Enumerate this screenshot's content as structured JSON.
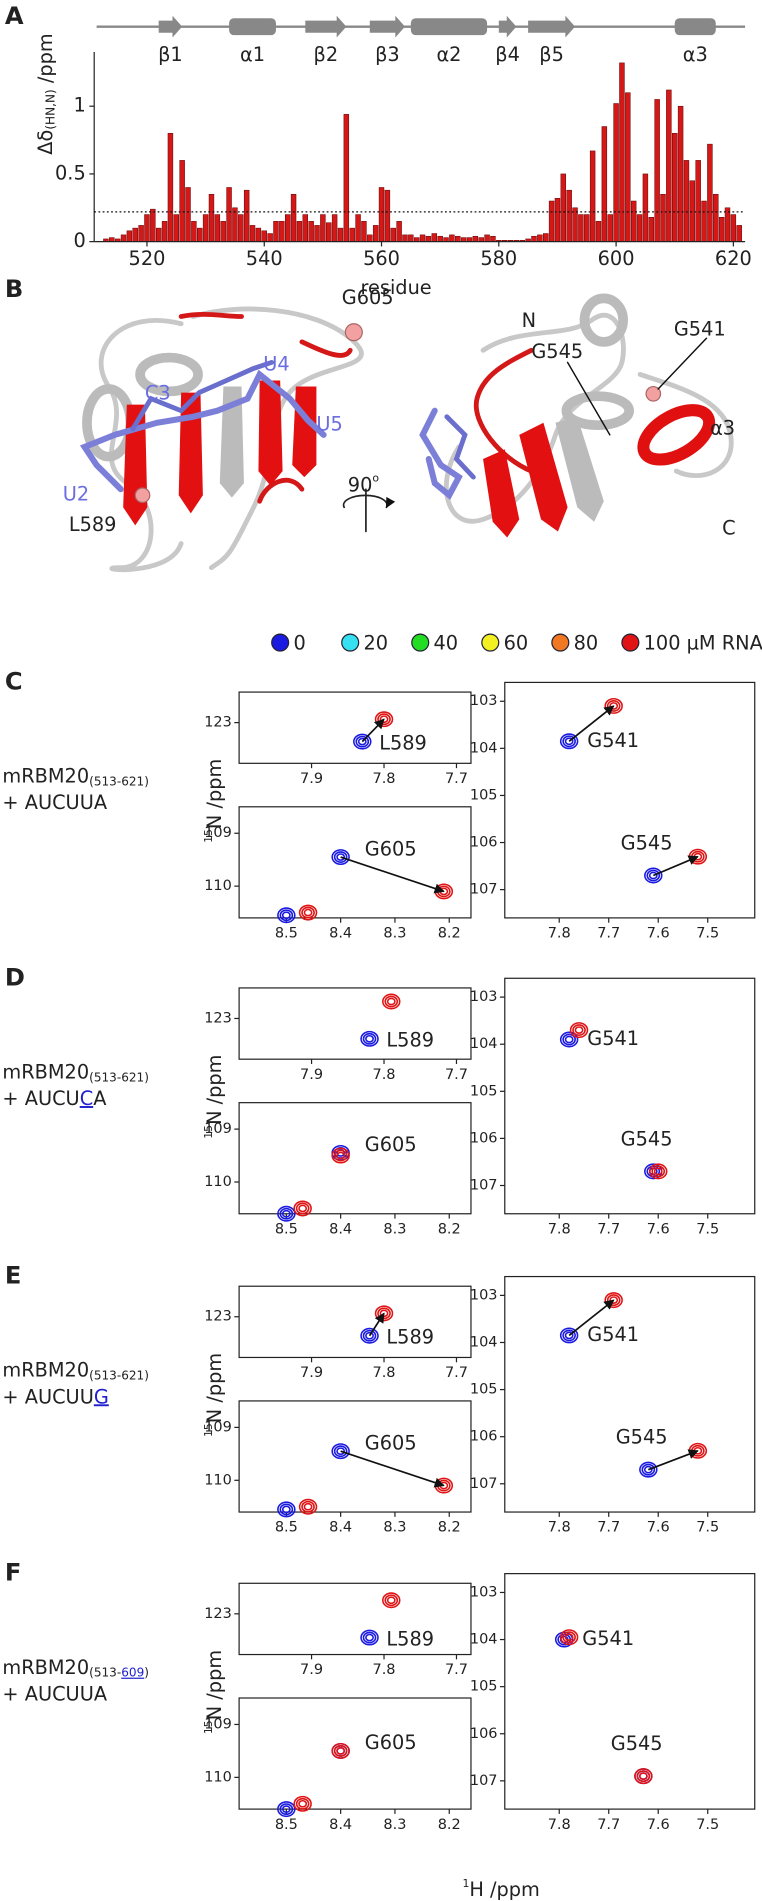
{
  "panel_labels": [
    "A",
    "B",
    "C",
    "D",
    "E",
    "F"
  ],
  "chart_data": {
    "type": "bar",
    "x": [
      513,
      514,
      515,
      516,
      517,
      518,
      519,
      520,
      521,
      522,
      523,
      524,
      525,
      526,
      527,
      528,
      529,
      530,
      531,
      532,
      533,
      534,
      535,
      536,
      537,
      538,
      539,
      540,
      541,
      542,
      543,
      544,
      545,
      546,
      547,
      548,
      549,
      550,
      551,
      552,
      553,
      554,
      555,
      556,
      557,
      558,
      559,
      560,
      561,
      562,
      563,
      564,
      565,
      566,
      567,
      568,
      569,
      570,
      571,
      572,
      573,
      574,
      575,
      576,
      577,
      578,
      579,
      580,
      581,
      582,
      583,
      584,
      585,
      586,
      587,
      588,
      589,
      590,
      591,
      592,
      593,
      594,
      595,
      596,
      597,
      598,
      599,
      600,
      601,
      602,
      603,
      604,
      605,
      606,
      607,
      608,
      609,
      610,
      611,
      612,
      613,
      614,
      615,
      616,
      617,
      618,
      619,
      620,
      621
    ],
    "values": [
      0.02,
      0.03,
      0.02,
      0.05,
      0.08,
      0.1,
      0.12,
      0.2,
      0.24,
      0.1,
      0.15,
      0.8,
      0.2,
      0.6,
      0.4,
      0.15,
      0.1,
      0.2,
      0.35,
      0.2,
      0.15,
      0.4,
      0.25,
      0.2,
      0.38,
      0.12,
      0.1,
      0.08,
      0.06,
      0.15,
      0.15,
      0.2,
      0.35,
      0.15,
      0.2,
      0.15,
      0.12,
      0.2,
      0.14,
      0.2,
      0.1,
      0.94,
      0.1,
      0.2,
      0.15,
      0.05,
      0.12,
      0.4,
      0.38,
      0.1,
      0.15,
      0.05,
      0.05,
      0.03,
      0.05,
      0.04,
      0.06,
      0.04,
      0.03,
      0.05,
      0.04,
      0.03,
      0.03,
      0.04,
      0.03,
      0.05,
      0.04,
      0.01,
      0.01,
      0.01,
      0.01,
      0.01,
      0.02,
      0.04,
      0.05,
      0.06,
      0.3,
      0.32,
      0.5,
      0.38,
      0.25,
      0.2,
      0.2,
      0.67,
      0.15,
      0.85,
      0.2,
      1.02,
      1.32,
      1.1,
      0.3,
      0.2,
      0.5,
      0.18,
      1.05,
      0.35,
      1.12,
      0.8,
      1.0,
      0.6,
      0.45,
      0.6,
      0.3,
      0.72,
      0.35,
      0.18,
      0.25,
      0.2,
      0.12
    ],
    "color": "#d41818",
    "xlim": [
      511,
      622
    ],
    "xticks": [
      520,
      540,
      560,
      580,
      600,
      620
    ],
    "ylim": [
      0,
      1.4
    ],
    "yticks": [
      0,
      0.5,
      1
    ],
    "threshold": 0.22,
    "xlabel": "residue",
    "ylabel": {
      "text": "Δδ",
      "sub": "(HN,N)",
      "unit": " /ppm"
    },
    "secondary_structure": [
      {
        "label": "β1",
        "type": "strand",
        "start": 522,
        "end": 526
      },
      {
        "label": "α1",
        "type": "helix",
        "start": 534,
        "end": 542
      },
      {
        "label": "β2",
        "type": "strand",
        "start": 547,
        "end": 554
      },
      {
        "label": "β3",
        "type": "strand",
        "start": 558,
        "end": 564
      },
      {
        "label": "α2",
        "type": "helix",
        "start": 565,
        "end": 578
      },
      {
        "label": "β4",
        "type": "strand",
        "start": 580,
        "end": 583
      },
      {
        "label": "β5",
        "type": "strand",
        "start": 585,
        "end": 593
      },
      {
        "label": "α3",
        "type": "helix",
        "start": 610,
        "end": 617
      }
    ]
  },
  "structure": {
    "left_labels": [
      "G605",
      "U4",
      "C3",
      "U5",
      "U2",
      "L589"
    ],
    "right_labels": [
      "N",
      "G545",
      "G541",
      "α3",
      "C"
    ],
    "rotation": {
      "text": "90",
      "sup": "o"
    }
  },
  "titration": {
    "legend": [
      {
        "label": "0",
        "color": "#1a1ae0"
      },
      {
        "label": "20",
        "color": "#35e0f0"
      },
      {
        "label": "40",
        "color": "#22dd22"
      },
      {
        "label": "60",
        "color": "#f2f020"
      },
      {
        "label": "80",
        "color": "#f07822"
      },
      {
        "label": "100 µM RNA",
        "color": "#e01414"
      }
    ],
    "y_label": {
      "sup": "15",
      "text": "N /ppm"
    },
    "x_label": {
      "sup": "1",
      "text": "H /ppm"
    },
    "panels": [
      {
        "sample": {
          "protein": "mRBM20",
          "range": [
            {
              "text": "(513-621)"
            }
          ],
          "rna": [
            {
              "text": "+ AUCUUA"
            }
          ]
        },
        "plots": [
          {
            "xlim": [
              8.0,
              7.68
            ],
            "xticks": [
              7.9,
              7.8,
              7.7
            ],
            "ylim": [
              123.6,
              122.55
            ],
            "yticks": [
              123
            ],
            "peaks": [
              {
                "label": "L589",
                "start": {
                  "x": 7.83,
                  "y": 123.28
                },
                "end": {
                  "x": 7.8,
                  "y": 122.95
                },
                "arrow": true
              }
            ]
          },
          {
            "xlim": [
              8.587,
              8.16
            ],
            "xticks": [
              8.5,
              8.4,
              8.3,
              8.2
            ],
            "ylim": [
              110.6,
              108.5
            ],
            "yticks": [
              109,
              110
            ],
            "peaks": [
              {
                "label": "G605",
                "start": {
                  "x": 8.4,
                  "y": 109.45
                },
                "end": {
                  "x": 8.21,
                  "y": 110.1
                },
                "arrow": true
              },
              {
                "label": null,
                "start": {
                  "x": 8.5,
                  "y": 110.55
                },
                "end": {
                  "x": 8.46,
                  "y": 110.5
                },
                "arrow": false
              }
            ]
          },
          {
            "xlim": [
              7.91,
              7.405
            ],
            "xticks": [
              7.8,
              7.7,
              7.6,
              7.5
            ],
            "ylim": [
              107.6,
              102.6
            ],
            "yticks": [
              103,
              104,
              105,
              106,
              107
            ],
            "peaks": [
              {
                "label": "G541",
                "start": {
                  "x": 7.78,
                  "y": 103.85
                },
                "end": {
                  "x": 7.69,
                  "y": 103.1
                },
                "arrow": true
              },
              {
                "label": "G545",
                "start": {
                  "x": 7.61,
                  "y": 106.7
                },
                "end": {
                  "x": 7.52,
                  "y": 106.3
                },
                "arrow": true
              }
            ]
          }
        ]
      },
      {
        "sample": {
          "protein": "mRBM20",
          "range": [
            {
              "text": "(513-621)"
            }
          ],
          "rna": [
            {
              "text": "+ AUCU"
            },
            {
              "text": "C",
              "mutated": true
            },
            {
              "text": "A"
            }
          ]
        },
        "plots": [
          {
            "xlim": [
              8.0,
              7.68
            ],
            "xticks": [
              7.9,
              7.8,
              7.7
            ],
            "ylim": [
              123.6,
              122.55
            ],
            "yticks": [
              123
            ],
            "peaks": [
              {
                "label": "L589",
                "start": {
                  "x": 7.82,
                  "y": 123.3
                },
                "end": {
                  "x": 7.79,
                  "y": 122.75
                },
                "arrow": false
              }
            ]
          },
          {
            "xlim": [
              8.587,
              8.16
            ],
            "xticks": [
              8.5,
              8.4,
              8.3,
              8.2
            ],
            "ylim": [
              110.6,
              108.5
            ],
            "yticks": [
              109,
              110
            ],
            "peaks": [
              {
                "label": "G605",
                "start": {
                  "x": 8.4,
                  "y": 109.45
                },
                "end": {
                  "x": 8.4,
                  "y": 109.5
                },
                "arrow": false
              },
              {
                "label": null,
                "start": {
                  "x": 8.5,
                  "y": 110.6
                },
                "end": {
                  "x": 8.47,
                  "y": 110.5
                },
                "arrow": false
              }
            ]
          },
          {
            "xlim": [
              7.91,
              7.405
            ],
            "xticks": [
              7.8,
              7.7,
              7.6,
              7.5
            ],
            "ylim": [
              107.6,
              102.6
            ],
            "yticks": [
              103,
              104,
              105,
              106,
              107
            ],
            "peaks": [
              {
                "label": "G541",
                "start": {
                  "x": 7.78,
                  "y": 103.9
                },
                "end": {
                  "x": 7.76,
                  "y": 103.7
                },
                "arrow": false
              },
              {
                "label": "G545",
                "start": {
                  "x": 7.61,
                  "y": 106.7
                },
                "end": {
                  "x": 7.6,
                  "y": 106.7
                },
                "arrow": false
              }
            ]
          }
        ]
      },
      {
        "sample": {
          "protein": "mRBM20",
          "range": [
            {
              "text": "(513-621)"
            }
          ],
          "rna": [
            {
              "text": "+ AUCUU"
            },
            {
              "text": "G",
              "mutated": true
            }
          ]
        },
        "plots": [
          {
            "xlim": [
              8.0,
              7.68
            ],
            "xticks": [
              7.9,
              7.8,
              7.7
            ],
            "ylim": [
              123.6,
              122.55
            ],
            "yticks": [
              123
            ],
            "peaks": [
              {
                "label": "L589",
                "start": {
                  "x": 7.82,
                  "y": 123.28
                },
                "end": {
                  "x": 7.8,
                  "y": 122.95
                },
                "arrow": true
              }
            ]
          },
          {
            "xlim": [
              8.587,
              8.16
            ],
            "xticks": [
              8.5,
              8.4,
              8.3,
              8.2
            ],
            "ylim": [
              110.6,
              108.5
            ],
            "yticks": [
              109,
              110
            ],
            "peaks": [
              {
                "label": "G605",
                "start": {
                  "x": 8.4,
                  "y": 109.45
                },
                "end": {
                  "x": 8.21,
                  "y": 110.1
                },
                "arrow": true
              },
              {
                "label": null,
                "start": {
                  "x": 8.5,
                  "y": 110.55
                },
                "end": {
                  "x": 8.46,
                  "y": 110.5
                },
                "arrow": false
              }
            ]
          },
          {
            "xlim": [
              7.91,
              7.405
            ],
            "xticks": [
              7.8,
              7.7,
              7.6,
              7.5
            ],
            "ylim": [
              107.6,
              102.6
            ],
            "yticks": [
              103,
              104,
              105,
              106,
              107
            ],
            "peaks": [
              {
                "label": "G541",
                "start": {
                  "x": 7.78,
                  "y": 103.85
                },
                "end": {
                  "x": 7.69,
                  "y": 103.1
                },
                "arrow": true
              },
              {
                "label": "G545",
                "start": {
                  "x": 7.62,
                  "y": 106.7
                },
                "end": {
                  "x": 7.52,
                  "y": 106.3
                },
                "arrow": true
              }
            ]
          }
        ]
      },
      {
        "sample": {
          "protein": "mRBM20",
          "range": [
            {
              "text": "(513-"
            },
            {
              "text": "609",
              "mutated": true
            },
            {
              "text": ")"
            }
          ],
          "rna": [
            {
              "text": "+ AUCUUA"
            }
          ]
        },
        "plots": [
          {
            "xlim": [
              8.0,
              7.68
            ],
            "xticks": [
              7.9,
              7.8,
              7.7
            ],
            "ylim": [
              123.6,
              122.55
            ],
            "yticks": [
              123
            ],
            "peaks": [
              {
                "label": "L589",
                "start": {
                  "x": 7.82,
                  "y": 123.35
                },
                "end": {
                  "x": 7.79,
                  "y": 122.8
                },
                "arrow": false
              }
            ]
          },
          {
            "xlim": [
              8.587,
              8.16
            ],
            "xticks": [
              8.5,
              8.4,
              8.3,
              8.2
            ],
            "ylim": [
              110.6,
              108.5
            ],
            "yticks": [
              109,
              110
            ],
            "peaks": [
              {
                "label": "G605",
                "start": {
                  "x": 8.4,
                  "y": 109.5
                },
                "end": {
                  "x": 8.4,
                  "y": 109.5
                },
                "arrow": false
              },
              {
                "label": null,
                "start": {
                  "x": 8.5,
                  "y": 110.6
                },
                "end": {
                  "x": 8.47,
                  "y": 110.5
                },
                "arrow": false
              }
            ]
          },
          {
            "xlim": [
              7.91,
              7.405
            ],
            "xticks": [
              7.8,
              7.7,
              7.6,
              7.5
            ],
            "ylim": [
              107.6,
              102.6
            ],
            "yticks": [
              103,
              104,
              105,
              106,
              107
            ],
            "peaks": [
              {
                "label": "G541",
                "start": {
                  "x": 7.79,
                  "y": 104.0
                },
                "end": {
                  "x": 7.78,
                  "y": 103.95
                },
                "arrow": false
              },
              {
                "label": "G545",
                "start": {
                  "x": 7.63,
                  "y": 106.9
                },
                "end": {
                  "x": 7.63,
                  "y": 106.9
                },
                "arrow": false
              }
            ]
          }
        ]
      }
    ]
  }
}
